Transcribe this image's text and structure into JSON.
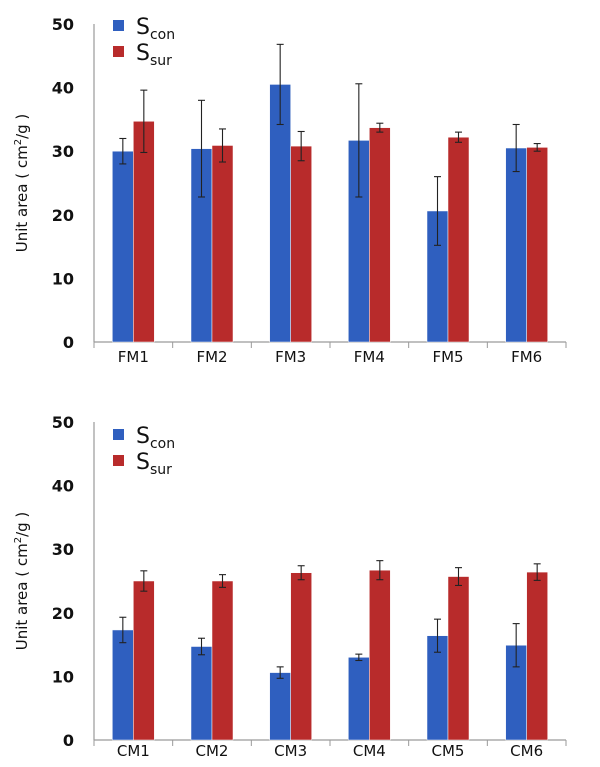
{
  "chart_data": [
    {
      "type": "bar",
      "categories": [
        "FM1",
        "FM2",
        "FM3",
        "FM4",
        "FM5",
        "FM6"
      ],
      "series": [
        {
          "name": "S",
          "sub": "con",
          "color": "#2f5fbf",
          "values": [
            30.0,
            30.4,
            40.5,
            31.7,
            20.6,
            30.5
          ],
          "errors": [
            2.0,
            7.6,
            6.3,
            8.9,
            5.4,
            3.7
          ]
        },
        {
          "name": "S",
          "sub": "sur",
          "color": "#b82b2b",
          "values": [
            34.7,
            30.9,
            30.8,
            33.7,
            32.2,
            30.6
          ],
          "errors": [
            4.9,
            2.6,
            2.3,
            0.7,
            0.8,
            0.6
          ]
        }
      ],
      "ylabel_main": "Unit area ( cm",
      "ylabel_sup": "2",
      "ylabel_tail": "/g )",
      "ylim": [
        0,
        50
      ],
      "yticks": [
        "0",
        "10",
        "20",
        "30",
        "40",
        "50"
      ],
      "legend": "top-left"
    },
    {
      "type": "bar",
      "categories": [
        "CM1",
        "CM2",
        "CM3",
        "CM4",
        "CM5",
        "CM6"
      ],
      "series": [
        {
          "name": "S",
          "sub": "con",
          "color": "#2f5fbf",
          "values": [
            17.3,
            14.7,
            10.6,
            13.0,
            16.4,
            14.9
          ],
          "errors": [
            2.0,
            1.3,
            0.9,
            0.5,
            2.6,
            3.4
          ]
        },
        {
          "name": "S",
          "sub": "sur",
          "color": "#b82b2b",
          "values": [
            25.0,
            25.0,
            26.3,
            26.7,
            25.7,
            26.4
          ],
          "errors": [
            1.6,
            1.0,
            1.1,
            1.5,
            1.4,
            1.3
          ]
        }
      ],
      "ylabel_main": "Unit area ( cm",
      "ylabel_sup": "2",
      "ylabel_tail": "/g )",
      "ylim": [
        0,
        50
      ],
      "yticks": [
        "0",
        "10",
        "20",
        "30",
        "40",
        "50"
      ],
      "legend": "top-left"
    }
  ]
}
